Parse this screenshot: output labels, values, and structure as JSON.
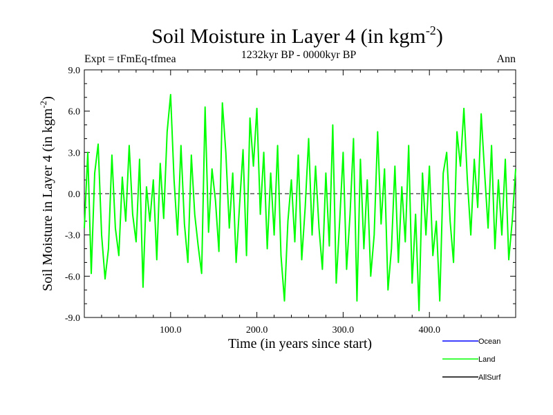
{
  "chart_data": {
    "type": "line",
    "title": "Soil Moisture in Layer 4 (in kgm",
    "title_sup": "-2",
    "title_close": ")",
    "subtitle": "1232kyr BP - 0000kyr BP",
    "expt_label": "Expt = tFmEq-tfmea",
    "season_label": "Ann",
    "xlabel": "Time (in years since start)",
    "ylabel": "Soil Moisture in Layer 4 (in kgm",
    "ylabel_sup": "-2",
    "ylabel_close": ")",
    "xlim": [
      0,
      500
    ],
    "ylim": [
      -9,
      9
    ],
    "x_ticks": [
      100,
      200,
      300,
      400
    ],
    "x_tick_labels": [
      "100.0",
      "200.0",
      "300.0",
      "400.0"
    ],
    "y_ticks": [
      9,
      6,
      3,
      0,
      -3,
      -6,
      -9
    ],
    "y_tick_labels": [
      "9.0",
      "6.0",
      "3.0",
      "0.0",
      "-3.0",
      "-6.0",
      "-9.0"
    ],
    "zero_line": 0,
    "legend": [
      {
        "name": "Ocean",
        "color": "#0000ff"
      },
      {
        "name": "Land",
        "color": "#00ff00"
      },
      {
        "name": "AllSurf",
        "color": "#000000"
      }
    ],
    "series": [
      {
        "name": "Land",
        "color": "#00ff00",
        "x": [
          0,
          4,
          8,
          12,
          16,
          20,
          24,
          28,
          32,
          36,
          40,
          44,
          48,
          52,
          56,
          60,
          64,
          68,
          72,
          76,
          80,
          84,
          88,
          92,
          96,
          100,
          104,
          108,
          112,
          116,
          120,
          124,
          128,
          132,
          136,
          140,
          144,
          148,
          152,
          156,
          160,
          164,
          168,
          172,
          176,
          180,
          184,
          188,
          192,
          196,
          200,
          204,
          208,
          212,
          216,
          220,
          224,
          228,
          232,
          236,
          240,
          244,
          248,
          252,
          256,
          260,
          264,
          268,
          272,
          276,
          280,
          284,
          288,
          292,
          296,
          300,
          304,
          308,
          312,
          316,
          320,
          324,
          328,
          332,
          336,
          340,
          344,
          348,
          352,
          356,
          360,
          364,
          368,
          372,
          376,
          380,
          384,
          388,
          392,
          396,
          400,
          404,
          408,
          412,
          416,
          420,
          424,
          428,
          432,
          436,
          440,
          444,
          448,
          452,
          456,
          460,
          464,
          468,
          472,
          476,
          480,
          484,
          488,
          492,
          496,
          500
        ],
        "values": [
          -2.5,
          3.0,
          -5.8,
          1.5,
          3.6,
          -3.0,
          -6.2,
          -4.0,
          2.8,
          -2.5,
          -4.5,
          1.2,
          -2.0,
          3.5,
          -1.5,
          -3.5,
          2.5,
          -6.8,
          0.5,
          -2.0,
          1.0,
          -4.8,
          2.2,
          -1.8,
          4.5,
          7.2,
          1.0,
          -3.0,
          3.5,
          -2.2,
          -5.0,
          2.8,
          -1.5,
          -3.8,
          -5.8,
          6.3,
          -2.8,
          1.8,
          -0.5,
          -4.2,
          6.6,
          3.0,
          -2.5,
          1.5,
          -5.0,
          -0.8,
          3.2,
          -4.5,
          5.5,
          2.0,
          6.2,
          -1.5,
          3.0,
          -4.0,
          1.5,
          -3.0,
          3.5,
          -4.5,
          -7.8,
          -2.0,
          1.0,
          -3.5,
          2.8,
          -4.8,
          -1.0,
          4.0,
          -3.0,
          2.0,
          -2.5,
          -5.5,
          1.5,
          -3.8,
          5.0,
          -6.5,
          -2.0,
          3.0,
          -5.5,
          -1.5,
          4.0,
          -7.8,
          2.5,
          -4.0,
          1.0,
          -6.0,
          -3.0,
          4.5,
          -2.2,
          1.8,
          -7.0,
          -4.0,
          2.0,
          -5.0,
          0.5,
          -3.5,
          3.5,
          -6.5,
          -1.5,
          -8.5,
          1.5,
          -3.0,
          2.0,
          -4.5,
          -2.0,
          -7.8,
          1.5,
          3.0,
          -2.0,
          -5.0,
          4.5,
          2.0,
          6.2,
          1.0,
          -3.0,
          2.5,
          -1.0,
          5.8,
          1.5,
          -2.5,
          3.5,
          -4.0,
          1.0,
          -3.0,
          2.5,
          -4.8,
          -2.0,
          1.8
        ]
      }
    ]
  }
}
